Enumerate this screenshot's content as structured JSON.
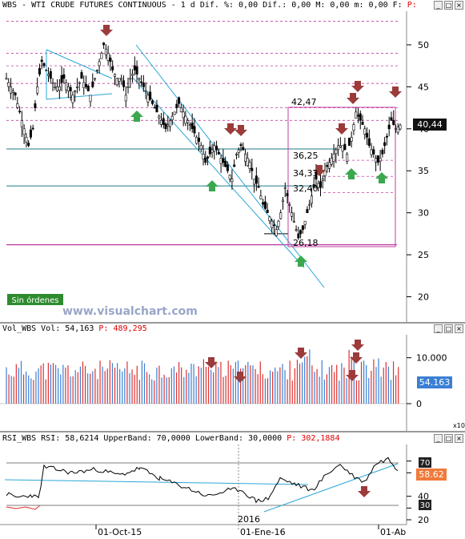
{
  "header": {
    "title": "WBS - WTI CRUDE FUTURES CONTINUOUS - 1 d Dif. %: 0,00 Dif.: 0,00 M: 0,00 m: 0,00 F:",
    "p_label": "P:"
  },
  "volume_panel": {
    "title": "Vol_WBS Vol: 54,163",
    "p_label": "P: 489,295"
  },
  "rsi_panel": {
    "title": "RSI_WBS RSI: 58,6214 UpperBand: 70,0000 LowerBand: 30,0000",
    "p_label": "P: 302,1884"
  },
  "watermark": "www.visualchart.com",
  "status_badge": "Sin órdenes",
  "x10_label": "x10",
  "colors": {
    "up": "#3a7fd5",
    "down": "#e03030",
    "price_box": "#e83a3a",
    "trend": "#2aa7d6",
    "resistance": "#c23fa0",
    "support": "#1f7a8a",
    "sell_arrow": "#9b3b3b",
    "buy_arrow": "#3aa84e"
  },
  "chart_data": [
    {
      "type": "candlestick",
      "ylim": [
        17,
        54
      ],
      "y_ticks": [
        "50",
        "45",
        "40",
        "35",
        "30",
        "25",
        "20"
      ],
      "current_price": "40,44",
      "levels": [
        "42,47",
        "36,25",
        "34,33",
        "32,40",
        "26,18"
      ],
      "x_ticks": [
        "01-Oct-15",
        "01-Ene-16",
        "01-Ab"
      ],
      "year_label": "2016",
      "close_path": [
        46,
        45,
        44,
        42,
        40,
        38,
        40,
        45,
        48,
        47,
        46,
        45,
        45,
        46,
        45,
        44,
        45,
        46,
        45,
        44,
        46,
        48,
        50,
        49,
        47,
        46,
        46,
        44,
        46,
        47,
        46,
        45,
        44,
        43,
        42,
        41,
        40,
        41,
        42,
        43,
        42,
        41,
        40,
        39,
        38,
        36,
        37,
        38,
        37,
        36,
        35,
        34,
        37,
        38,
        37,
        36,
        34,
        33,
        31,
        30,
        29,
        28,
        30,
        33,
        31,
        29,
        27,
        28,
        30,
        32,
        34,
        33,
        35,
        36,
        37,
        38,
        38,
        37,
        39,
        42,
        41,
        40,
        38,
        37,
        36,
        37,
        39,
        41,
        40,
        40.44
      ]
    },
    {
      "type": "bar",
      "ylim": [
        0,
        15000
      ],
      "y_ticks": [
        "10.000",
        "0"
      ],
      "current_value": "54.163"
    },
    {
      "type": "line",
      "ylim": [
        20,
        80
      ],
      "y_ticks": [
        "70",
        "60",
        "40",
        "30",
        "20"
      ],
      "current_value": "58.62",
      "upper_band": 70,
      "lower_band": 30
    }
  ]
}
